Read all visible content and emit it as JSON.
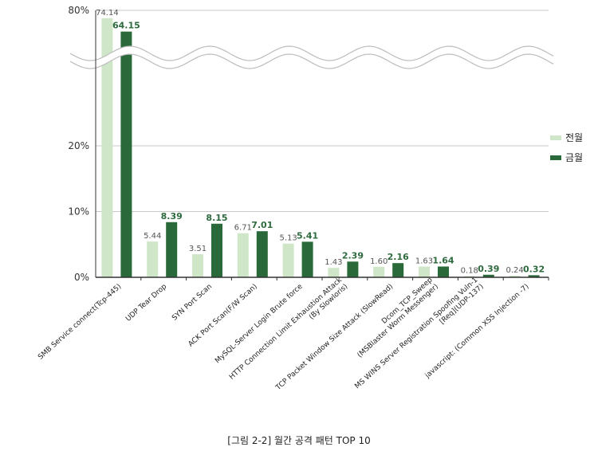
{
  "caption": "[그림 2-2] 월간 공격 패턴 TOP 10",
  "colors": {
    "prev": "#cfe6c8",
    "cur": "#2a6a3a",
    "grid": "#c8c8c8",
    "axis": "#333333"
  },
  "chart_data": {
    "type": "bar",
    "y_axis": {
      "ticks": [
        "0%",
        "10%",
        "20%",
        "80%"
      ],
      "broken": true,
      "grid": true
    },
    "legend_position": "right",
    "categories": [
      [
        "SMB Service connect(Tcp-445)"
      ],
      [
        "UDP Tear Drop"
      ],
      [
        "SYN Port Scan"
      ],
      [
        "ACK Port Scan(F/W Scan)"
      ],
      [
        "MySQL-Server Login Brute force"
      ],
      [
        "HTTP Connection Limit Exhaustion Attack",
        "(By Slowloris)"
      ],
      [
        "TCP Packet Window Size Attack (SlowRead)"
      ],
      [
        "Dcom_TCP_Sweep",
        "(MSBlaster Worm Messenger)"
      ],
      [
        "MS WINS Server Registration Spoofing Vuln-1",
        "[Req](UDP-137)"
      ],
      [
        "javascript: (Common XSS Injection -7)"
      ]
    ],
    "series": [
      {
        "name": "전월",
        "values": [
          74.14,
          5.44,
          3.51,
          6.71,
          5.13,
          1.43,
          1.6,
          1.63,
          0.18,
          0.24
        ],
        "labels": [
          "74.14",
          "5.44",
          "3.51",
          "6.71",
          "5.13",
          "1.43",
          "1.60",
          "1.63",
          "0.18",
          "0.24"
        ]
      },
      {
        "name": "금월",
        "values": [
          64.15,
          8.39,
          8.15,
          7.01,
          5.41,
          2.39,
          2.16,
          1.64,
          0.39,
          0.32
        ],
        "labels": [
          "64.15",
          "8.39",
          "8.15",
          "7.01",
          "5.41",
          "2.39",
          "2.16",
          "1.64",
          "0.39",
          "0.32"
        ]
      }
    ]
  }
}
